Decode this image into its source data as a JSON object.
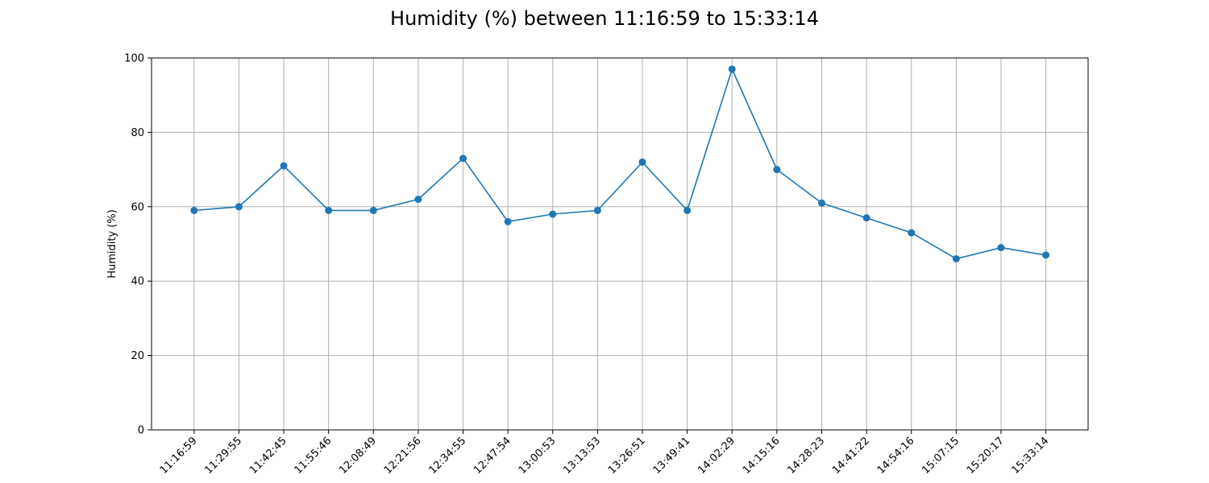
{
  "chart_data": {
    "type": "line",
    "title": "Humidity (%) between 11:16:59 to 15:33:14",
    "xlabel": "",
    "ylabel": "Humidity (%)",
    "categories": [
      "11:16:59",
      "11:29:55",
      "11:42:45",
      "11:55:46",
      "12:08:49",
      "12:21:56",
      "12:34:55",
      "12:47:54",
      "13:00:53",
      "13:13:53",
      "13:26:51",
      "13:49:41",
      "14:02:29",
      "14:15:16",
      "14:28:23",
      "14:41:22",
      "14:54:16",
      "15:07:15",
      "15:20:17",
      "15:33:14"
    ],
    "values": [
      59,
      60,
      71,
      59,
      59,
      62,
      73,
      56,
      58,
      59,
      72,
      59,
      97,
      70,
      61,
      57,
      53,
      46,
      49,
      47
    ],
    "ylim": [
      0,
      100
    ],
    "yticks": [
      0,
      20,
      40,
      60,
      80,
      100
    ],
    "grid": true,
    "series_color": "#1f77b4",
    "marker": "circle"
  }
}
